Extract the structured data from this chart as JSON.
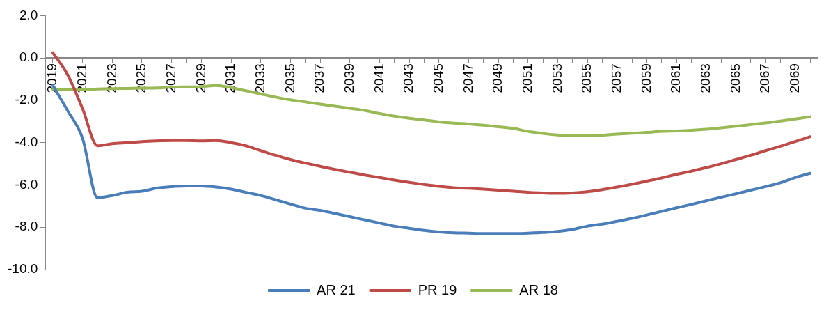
{
  "chart_data": {
    "type": "line",
    "categories": [
      "2019",
      null,
      "2021",
      null,
      "2023",
      null,
      "2025",
      null,
      "2027",
      null,
      "2029",
      null,
      "2031",
      null,
      "2033",
      null,
      "2035",
      null,
      "2037",
      null,
      "2039",
      null,
      "2041",
      null,
      "2043",
      null,
      "2045",
      null,
      "2047",
      null,
      "2049",
      null,
      "2051",
      null,
      "2053",
      null,
      "2055",
      null,
      "2057",
      null,
      "2059",
      null,
      "2061",
      null,
      "2063",
      null,
      "2065",
      null,
      "2067",
      null,
      "2069",
      null
    ],
    "series": [
      {
        "name": "AR 21",
        "color": "#4a7ebb",
        "values": [
          -1.3,
          -2.5,
          -3.8,
          -6.6,
          -6.5,
          -6.35,
          -6.3,
          -6.15,
          -6.08,
          -6.05,
          -6.05,
          -6.1,
          -6.2,
          -6.35,
          -6.5,
          -6.7,
          -6.9,
          -7.1,
          -7.2,
          -7.35,
          -7.5,
          -7.65,
          -7.8,
          -7.95,
          -8.05,
          -8.15,
          -8.22,
          -8.26,
          -8.28,
          -8.3,
          -8.3,
          -8.3,
          -8.28,
          -8.25,
          -8.2,
          -8.1,
          -7.95,
          -7.85,
          -7.72,
          -7.58,
          -7.42,
          -7.25,
          -7.08,
          -6.92,
          -6.75,
          -6.58,
          -6.42,
          -6.25,
          -6.08,
          -5.9,
          -5.65,
          -5.45
        ]
      },
      {
        "name": "PR 19",
        "color": "#be4b48",
        "values": [
          0.25,
          -0.8,
          -2.4,
          -4.15,
          -4.05,
          -4.0,
          -3.95,
          -3.92,
          -3.9,
          -3.9,
          -3.92,
          -3.9,
          -4.0,
          -4.15,
          -4.38,
          -4.6,
          -4.8,
          -4.97,
          -5.12,
          -5.27,
          -5.4,
          -5.53,
          -5.65,
          -5.77,
          -5.88,
          -5.98,
          -6.07,
          -6.13,
          -6.16,
          -6.2,
          -6.25,
          -6.3,
          -6.35,
          -6.38,
          -6.4,
          -6.38,
          -6.32,
          -6.22,
          -6.1,
          -5.97,
          -5.82,
          -5.67,
          -5.5,
          -5.35,
          -5.18,
          -5.0,
          -4.8,
          -4.6,
          -4.38,
          -4.17,
          -3.95,
          -3.72
        ]
      },
      {
        "name": "AR 18",
        "color": "#98b954",
        "values": [
          -1.5,
          -1.48,
          -1.5,
          -1.47,
          -1.45,
          -1.44,
          -1.43,
          -1.42,
          -1.38,
          -1.37,
          -1.36,
          -1.3,
          -1.4,
          -1.55,
          -1.7,
          -1.85,
          -1.98,
          -2.08,
          -2.18,
          -2.28,
          -2.38,
          -2.48,
          -2.63,
          -2.75,
          -2.85,
          -2.93,
          -3.02,
          -3.08,
          -3.12,
          -3.18,
          -3.25,
          -3.33,
          -3.47,
          -3.57,
          -3.64,
          -3.68,
          -3.68,
          -3.65,
          -3.6,
          -3.56,
          -3.52,
          -3.47,
          -3.45,
          -3.42,
          -3.37,
          -3.3,
          -3.23,
          -3.15,
          -3.07,
          -2.98,
          -2.88,
          -2.78
        ]
      }
    ],
    "ylim": [
      -10,
      2
    ],
    "yticks": [
      {
        "value": -10,
        "label": "-10.0"
      },
      {
        "value": -8,
        "label": "-8.0"
      },
      {
        "value": -6,
        "label": "-6.0"
      },
      {
        "value": -4,
        "label": "-4.0"
      },
      {
        "value": -2,
        "label": "-2.0"
      },
      {
        "value": 0,
        "label": "0.0"
      },
      {
        "value": 2,
        "label": "2.0"
      }
    ],
    "grid": false,
    "legend": "bottom",
    "marker": "none",
    "line_style": "solid"
  }
}
